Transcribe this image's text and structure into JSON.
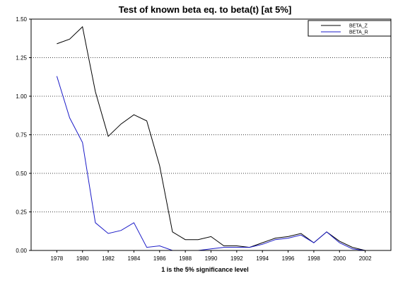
{
  "chart_data": {
    "type": "line",
    "title": "Test of known beta eq. to beta(t) [at 5%]",
    "xlabel": "1 is the 5% significance level",
    "ylabel": "",
    "xlim": [
      1976,
      2004
    ],
    "ylim": [
      0,
      1.5
    ],
    "x_ticks": [
      "1978",
      "1980",
      "1982",
      "1984",
      "1986",
      "1988",
      "1990",
      "1992",
      "1994",
      "1996",
      "1998",
      "2000",
      "2002"
    ],
    "y_ticks": [
      "1.50",
      "1.25",
      "1.00",
      "0.75",
      "0.50",
      "0.25",
      "0.00"
    ],
    "grid": "horizontal dotted",
    "legend_position": "top-right",
    "x": [
      1978,
      1979,
      1980,
      1981,
      1982,
      1983,
      1984,
      1985,
      1986,
      1987,
      1988,
      1989,
      1990,
      1991,
      1992,
      1993,
      1994,
      1995,
      1996,
      1997,
      1998,
      1999,
      2000,
      2001,
      2002
    ],
    "series": [
      {
        "name": "BETA_Z",
        "color": "#000000",
        "values": [
          1.34,
          1.37,
          1.45,
          1.03,
          0.74,
          0.82,
          0.88,
          0.84,
          0.55,
          0.12,
          0.07,
          0.07,
          0.09,
          0.03,
          0.03,
          0.02,
          0.05,
          0.08,
          0.09,
          0.11,
          0.05,
          0.12,
          0.06,
          0.02,
          0.0
        ]
      },
      {
        "name": "BETA_R",
        "color": "#1c1cc8",
        "values": [
          1.13,
          0.86,
          0.7,
          0.18,
          0.11,
          0.13,
          0.18,
          0.02,
          0.03,
          0.0,
          0.0,
          0.0,
          0.01,
          0.02,
          0.02,
          0.02,
          0.04,
          0.07,
          0.08,
          0.1,
          0.05,
          0.12,
          0.05,
          0.01,
          0.0
        ]
      }
    ]
  }
}
